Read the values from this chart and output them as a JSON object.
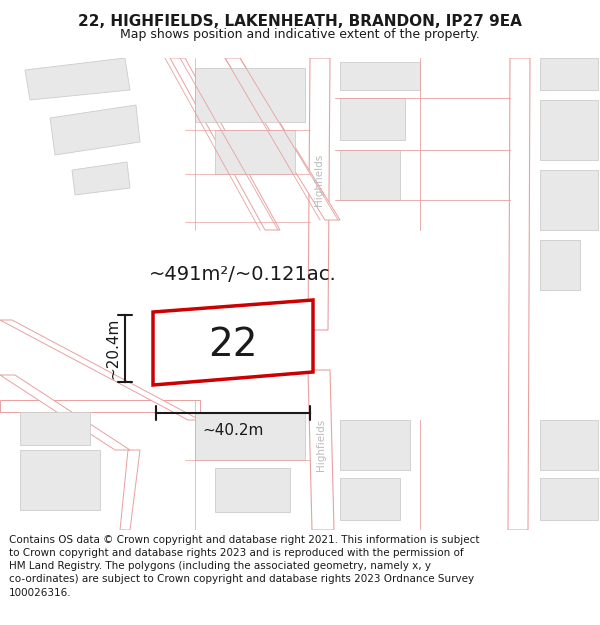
{
  "title": "22, HIGHFIELDS, LAKENHEATH, BRANDON, IP27 9EA",
  "subtitle": "Map shows position and indicative extent of the property.",
  "footer": "Contains OS data © Crown copyright and database right 2021. This information is subject to Crown copyright and database rights 2023 and is reproduced with the permission of HM Land Registry. The polygons (including the associated geometry, namely x, y co-ordinates) are subject to Crown copyright and database rights 2023 Ordnance Survey 100026316.",
  "plot_color": "#cc0000",
  "plot_label": "22",
  "area_text": "~491m²/~0.121ac.",
  "width_text": "~40.2m",
  "height_text": "~20.4m",
  "title_fontsize": 11,
  "subtitle_fontsize": 9,
  "footer_fontsize": 7.5,
  "annot_fontsize": 11,
  "area_fontsize": 14,
  "road_stroke": "#e8a0a0",
  "building_fill": "#e8e8e8",
  "building_edge": "#cccccc",
  "street_label_color": "#bbbbbb",
  "map_bg": "#ffffff"
}
